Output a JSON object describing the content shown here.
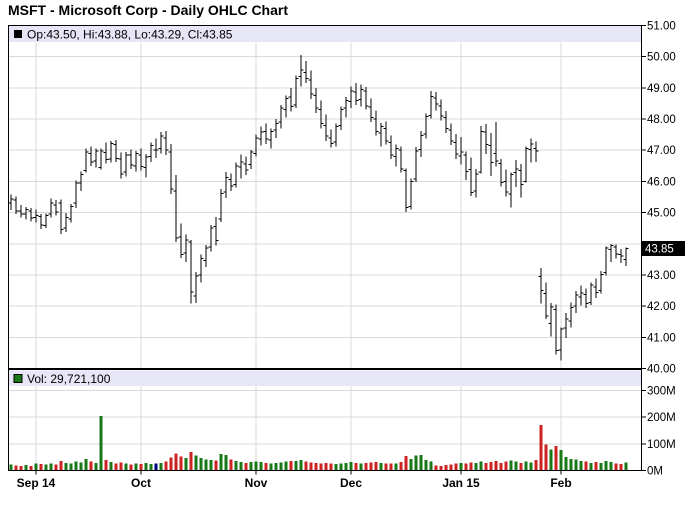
{
  "window": {
    "title": "MSFT - Microsoft Corp - Daily OHLC Chart"
  },
  "price_pane": {
    "legend_label": "Op:43.50, Hi:43.88, Lo:43.29, Cl:43.85",
    "last_price_label": "43.85",
    "axis_tick_labels": [
      "51.00",
      "50.00",
      "49.00",
      "48.00",
      "47.00",
      "46.00",
      "45.00",
      "43.00",
      "42.00",
      "41.00",
      "40.00"
    ]
  },
  "volume_pane": {
    "legend_label": "Vol: 29,721,100",
    "axis_tick_labels": [
      "300M",
      "200M",
      "100M",
      "0M"
    ]
  },
  "x_axis": {
    "tick_labels": [
      "Sep 14",
      "Oct",
      "Nov",
      "Dec",
      "Jan 15",
      "Feb"
    ]
  },
  "colors": {
    "up_volume": "#177817",
    "down_volume": "#CC2222",
    "neutral_volume": "#000080",
    "legend_bg": "#E6E6F6",
    "grid": "#D9D9D9",
    "bar": "#000000",
    "axis": "#000000",
    "badge_bg": "#000000",
    "badge_text": "#FFFFFF"
  },
  "chart_data": {
    "type": "ohlc",
    "symbol": "MSFT",
    "company": "Microsoft Corp",
    "interval": "Daily",
    "title": "MSFT - Microsoft Corp - Daily OHLC Chart",
    "last_bar": {
      "open": 43.5,
      "high": 43.88,
      "low": 43.29,
      "close": 43.85,
      "volume": 29721100
    },
    "price_axis": {
      "min": 40,
      "max": 51,
      "tick_step": 1,
      "current_price": 43.85
    },
    "volume_axis_millions": {
      "min": 0,
      "max": 375,
      "tick_step": 100
    },
    "x_ticks": [
      {
        "label": "Sep 14",
        "bar_index": 5
      },
      {
        "label": "Oct",
        "bar_index": 26
      },
      {
        "label": "Nov",
        "bar_index": 49
      },
      {
        "label": "Dec",
        "bar_index": 68
      },
      {
        "label": "Jan 15",
        "bar_index": 90
      },
      {
        "label": "Feb",
        "bar_index": 110
      }
    ],
    "bars_ohlc": [
      [
        45.3,
        45.58,
        45.08,
        45.43
      ],
      [
        45.4,
        45.52,
        44.95,
        45.05
      ],
      [
        45.05,
        45.25,
        44.85,
        44.95
      ],
      [
        44.95,
        45.18,
        44.78,
        45.1
      ],
      [
        45.05,
        45.15,
        44.72,
        44.82
      ],
      [
        44.85,
        45.1,
        44.68,
        44.9
      ],
      [
        44.88,
        44.96,
        44.48,
        44.6
      ],
      [
        44.58,
        44.97,
        44.5,
        44.9
      ],
      [
        44.95,
        45.45,
        44.85,
        45.3
      ],
      [
        45.25,
        45.4,
        44.9,
        45.02
      ],
      [
        45.3,
        45.42,
        44.32,
        44.45
      ],
      [
        44.5,
        44.98,
        44.38,
        44.85
      ],
      [
        44.8,
        45.28,
        44.68,
        45.2
      ],
      [
        45.3,
        46.03,
        45.15,
        45.95
      ],
      [
        45.95,
        46.32,
        45.7,
        46.22
      ],
      [
        46.35,
        47.06,
        46.28,
        46.95
      ],
      [
        46.9,
        47.12,
        46.5,
        46.62
      ],
      [
        46.65,
        47.05,
        46.45,
        46.97
      ],
      [
        46.45,
        47.05,
        46.38,
        46.97
      ],
      [
        46.92,
        47.25,
        46.58,
        46.7
      ],
      [
        46.72,
        47.3,
        46.6,
        47.22
      ],
      [
        47.18,
        47.32,
        46.62,
        46.74
      ],
      [
        46.72,
        46.92,
        46.1,
        46.24
      ],
      [
        46.3,
        46.95,
        46.16,
        46.85
      ],
      [
        46.85,
        47.02,
        46.4,
        46.52
      ],
      [
        46.5,
        46.98,
        46.32,
        46.9
      ],
      [
        46.85,
        47.05,
        46.35,
        46.48
      ],
      [
        46.45,
        46.88,
        46.12,
        46.78
      ],
      [
        46.8,
        47.25,
        46.62,
        47.15
      ],
      [
        47.0,
        47.38,
        46.75,
        47.0
      ],
      [
        47.05,
        47.58,
        46.9,
        47.45
      ],
      [
        47.4,
        47.62,
        46.85,
        47.0
      ],
      [
        46.95,
        47.2,
        45.6,
        45.75
      ],
      [
        45.7,
        46.2,
        44.05,
        44.18
      ],
      [
        44.22,
        44.65,
        43.55,
        43.66
      ],
      [
        43.7,
        44.3,
        43.42,
        44.12
      ],
      [
        44.05,
        44.12,
        42.08,
        42.45
      ],
      [
        42.32,
        43.1,
        42.1,
        42.96
      ],
      [
        43.0,
        43.65,
        42.76,
        43.52
      ],
      [
        43.46,
        43.96,
        43.25,
        43.86
      ],
      [
        43.9,
        44.6,
        43.76,
        44.5
      ],
      [
        44.55,
        44.86,
        43.95,
        44.1
      ],
      [
        44.8,
        45.75,
        44.7,
        45.62
      ],
      [
        45.66,
        46.3,
        45.46,
        46.13
      ],
      [
        46.06,
        46.26,
        45.7,
        45.86
      ],
      [
        45.9,
        46.6,
        45.8,
        46.5
      ],
      [
        46.46,
        46.86,
        46.1,
        46.62
      ],
      [
        46.56,
        46.8,
        46.2,
        46.36
      ],
      [
        46.55,
        47.0,
        46.4,
        46.95
      ],
      [
        46.9,
        47.5,
        46.8,
        47.4
      ],
      [
        47.36,
        47.76,
        47.15,
        47.58
      ],
      [
        47.6,
        47.86,
        47.2,
        47.36
      ],
      [
        47.32,
        47.7,
        47.05,
        47.6
      ],
      [
        47.65,
        48.0,
        47.4,
        47.86
      ],
      [
        47.9,
        48.45,
        47.7,
        48.36
      ],
      [
        48.3,
        48.76,
        48.05,
        48.66
      ],
      [
        48.7,
        49.0,
        48.25,
        48.4
      ],
      [
        48.45,
        49.4,
        48.35,
        49.3
      ],
      [
        49.36,
        50.05,
        49.05,
        49.58
      ],
      [
        49.5,
        49.86,
        49.15,
        49.3
      ],
      [
        49.26,
        49.56,
        48.65,
        48.8
      ],
      [
        48.76,
        49.0,
        48.2,
        48.36
      ],
      [
        48.3,
        48.6,
        47.7,
        47.86
      ],
      [
        47.8,
        48.15,
        47.3,
        47.45
      ],
      [
        47.4,
        47.66,
        47.08,
        47.22
      ],
      [
        47.26,
        47.86,
        47.12,
        47.76
      ],
      [
        47.8,
        48.4,
        47.65,
        48.3
      ],
      [
        48.35,
        48.7,
        48.05,
        48.6
      ],
      [
        48.56,
        49.05,
        48.35,
        48.9
      ],
      [
        48.86,
        49.16,
        48.45,
        48.6
      ],
      [
        48.62,
        49.1,
        48.4,
        48.95
      ],
      [
        48.9,
        49.02,
        48.3,
        48.42
      ],
      [
        48.38,
        48.66,
        47.9,
        48.05
      ],
      [
        48.0,
        48.28,
        47.48,
        47.6
      ],
      [
        47.55,
        47.88,
        47.12,
        47.76
      ],
      [
        47.7,
        47.92,
        47.18,
        47.3
      ],
      [
        47.25,
        47.48,
        46.72,
        46.85
      ],
      [
        46.8,
        47.18,
        46.48,
        47.05
      ],
      [
        47.0,
        47.12,
        46.28,
        46.4
      ],
      [
        46.35,
        46.42,
        45.02,
        45.16
      ],
      [
        45.2,
        46.1,
        45.1,
        46.0
      ],
      [
        46.08,
        47.1,
        45.98,
        46.98
      ],
      [
        47.02,
        47.62,
        46.78,
        47.48
      ],
      [
        47.52,
        48.18,
        47.38,
        48.08
      ],
      [
        48.12,
        48.9,
        48.02,
        48.72
      ],
      [
        48.68,
        48.86,
        48.28,
        48.48
      ],
      [
        48.42,
        48.62,
        47.95,
        48.1
      ],
      [
        48.05,
        48.26,
        47.55,
        47.7
      ],
      [
        47.65,
        47.86,
        47.16,
        47.3
      ],
      [
        47.25,
        47.52,
        46.72,
        46.88
      ],
      [
        46.82,
        47.42,
        46.54,
        46.94
      ],
      [
        46.85,
        46.96,
        46.05,
        46.32
      ],
      [
        46.38,
        46.76,
        45.54,
        45.65
      ],
      [
        45.7,
        46.4,
        45.49,
        46.23
      ],
      [
        46.3,
        47.78,
        46.25,
        47.6
      ],
      [
        47.58,
        47.84,
        46.88,
        47.19
      ],
      [
        47.15,
        47.56,
        46.18,
        46.6
      ],
      [
        46.9,
        47.91,
        46.48,
        46.66
      ],
      [
        46.58,
        46.72,
        45.84,
        45.96
      ],
      [
        46.0,
        46.38,
        45.52,
        45.66
      ],
      [
        45.6,
        46.28,
        45.17,
        46.22
      ],
      [
        46.28,
        46.68,
        45.82,
        46.4
      ],
      [
        46.35,
        46.56,
        45.48,
        45.9
      ],
      [
        46.0,
        47.12,
        45.96,
        47.05
      ],
      [
        47.02,
        47.38,
        46.6,
        47.2
      ],
      [
        47.05,
        47.28,
        46.62,
        46.98
      ],
      [
        42.95,
        43.22,
        42.08,
        42.5
      ],
      [
        42.4,
        42.76,
        41.58,
        41.68
      ],
      [
        41.45,
        42.1,
        41.02,
        41.98
      ],
      [
        41.9,
        42.05,
        40.45,
        40.58
      ],
      [
        40.6,
        41.32,
        40.26,
        41.26
      ],
      [
        41.3,
        41.78,
        40.98,
        41.58
      ],
      [
        41.52,
        42.12,
        41.32,
        41.95
      ],
      [
        42.0,
        42.48,
        41.78,
        42.35
      ],
      [
        42.3,
        42.66,
        42.02,
        42.42
      ],
      [
        42.38,
        42.56,
        41.94,
        42.08
      ],
      [
        42.12,
        42.76,
        42.04,
        42.68
      ],
      [
        42.62,
        42.88,
        42.26,
        42.44
      ],
      [
        42.5,
        43.12,
        42.4,
        43.02
      ],
      [
        43.08,
        43.92,
        42.98,
        43.87
      ],
      [
        43.82,
        43.99,
        43.42,
        43.95
      ],
      [
        43.9,
        43.97,
        43.52,
        43.68
      ],
      [
        43.66,
        43.84,
        43.38,
        43.6
      ],
      [
        43.5,
        43.88,
        43.29,
        43.85
      ]
    ],
    "volumes_millions": [
      22,
      19,
      17,
      21,
      16,
      27,
      24,
      22,
      26,
      23,
      36,
      28,
      26,
      34,
      30,
      44,
      34,
      29,
      205,
      40,
      32,
      27,
      30,
      26,
      23,
      27,
      25,
      28,
      24,
      26,
      28,
      33,
      48,
      64,
      52,
      47,
      70,
      56,
      46,
      42,
      40,
      38,
      62,
      58,
      42,
      36,
      32,
      29,
      31,
      34,
      31,
      29,
      27,
      28,
      30,
      33,
      36,
      35,
      40,
      34,
      30,
      28,
      27,
      29,
      26,
      24,
      26,
      29,
      31,
      28,
      26,
      28,
      30,
      31,
      29,
      27,
      26,
      27,
      32,
      54,
      44,
      56,
      58,
      40,
      33,
      19,
      17,
      21,
      23,
      27,
      28,
      26,
      30,
      29,
      33,
      28,
      32,
      36,
      29,
      33,
      37,
      33,
      29,
      34,
      30,
      40,
      170,
      98,
      78,
      92,
      76,
      50,
      44,
      41,
      36,
      33,
      29,
      31,
      29,
      36,
      31,
      27,
      25,
      29.7
    ]
  }
}
